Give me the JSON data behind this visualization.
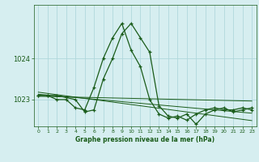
{
  "title": "Graphe pression niveau de la mer (hPa)",
  "background_color": "#d6eef0",
  "grid_color": "#b0d8dc",
  "line_color": "#1a5c1a",
  "xlim": [
    -0.5,
    23.5
  ],
  "ylim": [
    1022.35,
    1025.3
  ],
  "yticks": [
    1023,
    1024
  ],
  "xticks": [
    0,
    1,
    2,
    3,
    4,
    5,
    6,
    7,
    8,
    9,
    10,
    11,
    12,
    13,
    14,
    15,
    16,
    17,
    18,
    19,
    20,
    21,
    22,
    23
  ],
  "series1": [
    1023.1,
    1023.1,
    1023.1,
    1023.05,
    1023.0,
    1022.7,
    1022.75,
    1023.5,
    1024.0,
    1024.6,
    1024.85,
    1024.5,
    1024.15,
    1022.85,
    1022.6,
    1022.55,
    1022.65,
    1022.4,
    1022.65,
    1022.75,
    1022.8,
    1022.7,
    1022.75,
    1022.8
  ],
  "series2": [
    1023.1,
    1023.1,
    1023.0,
    1023.0,
    1022.8,
    1022.75,
    1023.3,
    1024.0,
    1024.5,
    1024.85,
    1024.2,
    1023.8,
    1023.0,
    1022.65,
    1022.55,
    1022.6,
    1022.5,
    1022.65,
    1022.75,
    1022.8,
    1022.75,
    1022.75,
    1022.8,
    1022.75
  ],
  "trend1": [
    1023.13,
    1023.11,
    1023.09,
    1023.07,
    1023.05,
    1023.03,
    1023.01,
    1022.99,
    1022.97,
    1022.95,
    1022.93,
    1022.91,
    1022.89,
    1022.87,
    1022.85,
    1022.83,
    1022.81,
    1022.79,
    1022.77,
    1022.75,
    1022.73,
    1022.71,
    1022.69,
    1022.67
  ],
  "trend2": [
    1023.18,
    1023.15,
    1023.12,
    1023.09,
    1023.06,
    1023.03,
    1023.0,
    1022.97,
    1022.94,
    1022.91,
    1022.88,
    1022.85,
    1022.82,
    1022.79,
    1022.76,
    1022.73,
    1022.7,
    1022.67,
    1022.64,
    1022.61,
    1022.58,
    1022.55,
    1022.52,
    1022.49
  ],
  "trend3": [
    1023.08,
    1023.075,
    1023.07,
    1023.065,
    1023.06,
    1023.055,
    1023.05,
    1023.045,
    1023.04,
    1023.035,
    1023.03,
    1023.025,
    1023.02,
    1023.015,
    1023.01,
    1023.005,
    1023.0,
    1022.995,
    1022.99,
    1022.985,
    1022.98,
    1022.975,
    1022.97,
    1022.965
  ]
}
